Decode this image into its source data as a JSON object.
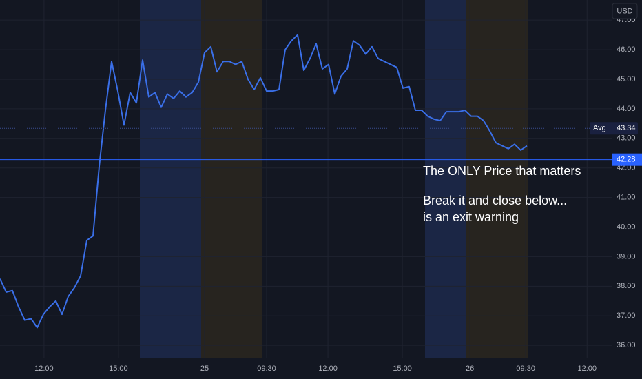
{
  "chart_data": {
    "type": "line",
    "currency": "USD",
    "color": "#3a6fe8",
    "values": [
      38.25,
      37.8,
      37.85,
      37.3,
      36.85,
      36.9,
      36.6,
      37.05,
      37.3,
      37.5,
      37.05,
      37.65,
      37.95,
      38.35,
      39.55,
      39.7,
      42.05,
      43.95,
      45.6,
      44.6,
      43.45,
      44.55,
      44.2,
      45.65,
      44.4,
      44.55,
      44.05,
      44.5,
      44.35,
      44.6,
      44.4,
      44.55,
      44.9,
      45.9,
      46.1,
      45.25,
      45.6,
      45.6,
      45.5,
      45.6,
      45.0,
      44.65,
      45.05,
      44.6,
      44.6,
      44.65,
      46.0,
      46.3,
      46.5,
      45.3,
      45.7,
      46.2,
      45.35,
      45.5,
      44.5,
      45.1,
      45.35,
      46.3,
      46.15,
      45.85,
      46.1,
      45.7,
      45.6,
      45.5,
      45.4,
      44.7,
      44.75,
      43.95,
      43.95,
      43.75,
      43.65,
      43.6,
      43.9,
      43.9,
      43.9,
      43.95,
      43.75,
      43.75,
      43.6,
      43.25,
      42.85,
      42.75,
      42.65,
      42.8,
      42.6,
      42.75
    ],
    "xlim": [
      0,
      98.67
    ],
    "xticks": [
      {
        "value": 7.1,
        "label": "12:00"
      },
      {
        "value": 19.1,
        "label": "15:00"
      },
      {
        "value": 33,
        "label": "25"
      },
      {
        "value": 43,
        "label": "09:30"
      },
      {
        "value": 52.9,
        "label": "12:00"
      },
      {
        "value": 64.9,
        "label": "15:00"
      },
      {
        "value": 75.8,
        "label": "26"
      },
      {
        "value": 84.8,
        "label": "09:30"
      },
      {
        "value": 94.7,
        "label": "12:00"
      }
    ],
    "ylim": [
      35.56,
      47.68
    ],
    "yticks": [
      {
        "value": 36,
        "label": "36.00"
      },
      {
        "value": 37,
        "label": "37.00"
      },
      {
        "value": 38,
        "label": "38.00"
      },
      {
        "value": 39,
        "label": "39.00"
      },
      {
        "value": 40,
        "label": "40.00"
      },
      {
        "value": 41,
        "label": "41.00"
      },
      {
        "value": 42,
        "label": "42.00"
      },
      {
        "value": 43,
        "label": "43.00"
      },
      {
        "value": 44,
        "label": "44.00"
      },
      {
        "value": 45,
        "label": "45.00"
      },
      {
        "value": 46,
        "label": "46.00"
      },
      {
        "value": 47,
        "label": "47.00"
      }
    ],
    "grid": true,
    "avg_line": {
      "label": "Avg",
      "value": 43.34
    },
    "price_line": {
      "value": 42.28
    },
    "annotations": [
      "The ONLY Price that matters",
      "Break it and close below...",
      "is an exit warning"
    ]
  }
}
